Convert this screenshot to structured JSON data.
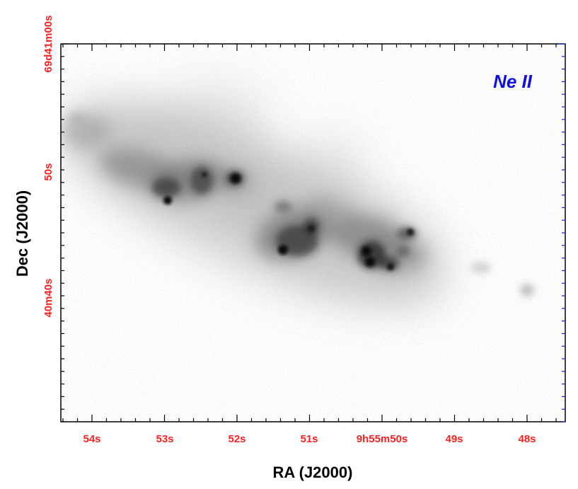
{
  "image": {
    "panel_label": "Ne II",
    "x_axis_title": "RA (J2000)",
    "y_axis_title": "Dec (J2000)",
    "x_tick_labels": [
      "54s",
      "53s",
      "52s",
      "51s",
      "9h55m50s",
      "49s",
      "48s"
    ],
    "y_tick_labels": [
      "69d41m00s",
      "50s",
      "40m40s"
    ],
    "colors": {
      "tick_label": "#ff2020",
      "panel_label": "#1010e0",
      "frame": "#000000",
      "right_ticks": "#2020d0",
      "background": "#ffffff"
    }
  }
}
